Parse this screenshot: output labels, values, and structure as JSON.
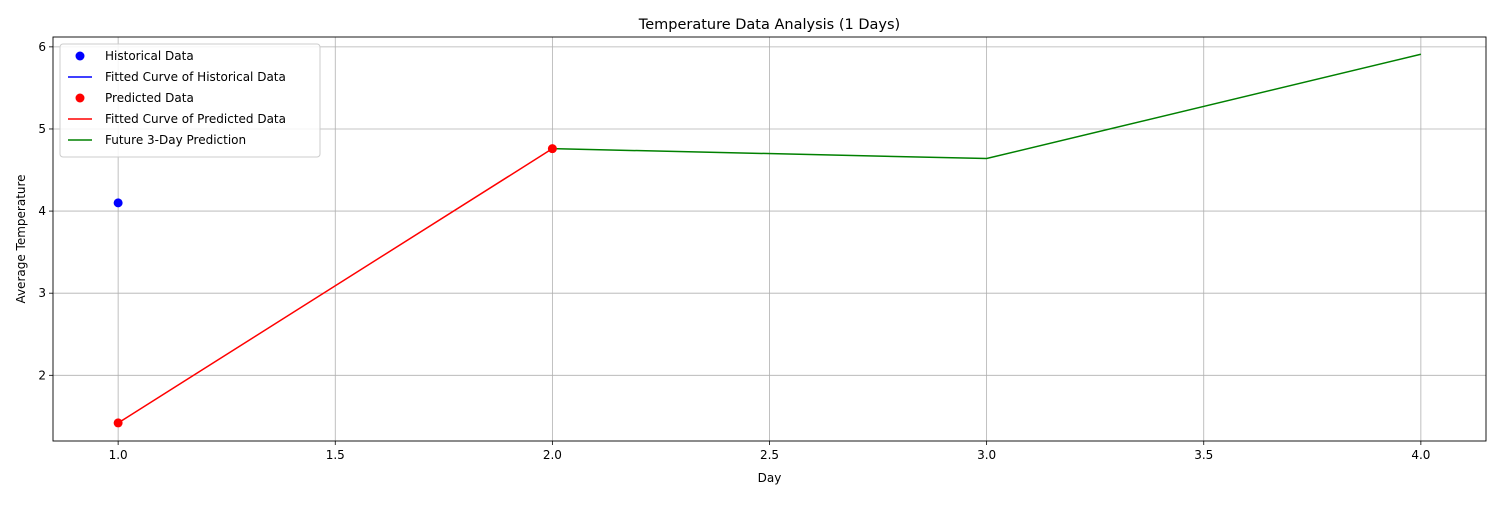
{
  "chart_data": {
    "type": "line",
    "title": "Temperature Data Analysis (1 Days)",
    "xlabel": "Day",
    "ylabel": "Average Temperature",
    "xlim": [
      0.85,
      4.15
    ],
    "ylim": [
      1.2,
      6.12
    ],
    "xticks": [
      1.0,
      1.5,
      2.0,
      2.5,
      3.0,
      3.5,
      4.0
    ],
    "xtick_labels": [
      "1.0",
      "1.5",
      "2.0",
      "2.5",
      "3.0",
      "3.5",
      "4.0"
    ],
    "yticks": [
      2,
      3,
      4,
      5,
      6
    ],
    "ytick_labels": [
      "2",
      "3",
      "4",
      "5",
      "6"
    ],
    "grid": true,
    "legend_position": "top-left",
    "series": [
      {
        "name": "Historical Data",
        "kind": "points",
        "color": "#0000ff",
        "x": [
          1.0
        ],
        "y": [
          4.1
        ]
      },
      {
        "name": "Fitted Curve of Historical Data",
        "kind": "line",
        "color": "#0000ff",
        "x": [],
        "y": []
      },
      {
        "name": "Predicted Data",
        "kind": "points",
        "color": "#ff0000",
        "x": [
          1.0,
          2.0
        ],
        "y": [
          1.42,
          4.76
        ]
      },
      {
        "name": "Fitted Curve of Predicted Data",
        "kind": "line",
        "color": "#ff0000",
        "x": [
          1.0,
          2.0
        ],
        "y": [
          1.42,
          4.76
        ]
      },
      {
        "name": "Future 3-Day Prediction",
        "kind": "line",
        "color": "#008000",
        "x": [
          2.0,
          3.0,
          4.0
        ],
        "y": [
          4.76,
          4.64,
          5.91
        ]
      }
    ]
  }
}
